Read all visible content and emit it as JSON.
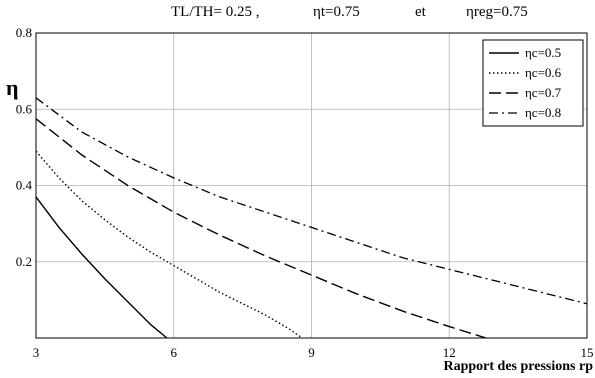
{
  "chart_data": {
    "type": "line",
    "title": {
      "part1": "TL/TH= 0.25 ,",
      "part2": "ηt=0.75",
      "part3": "et",
      "part4": "ηreg=0.75"
    },
    "xlabel": "Rapport des pressions rp",
    "ylabel": "η",
    "xlim": [
      3,
      15
    ],
    "ylim": [
      0,
      0.8
    ],
    "xticks": [
      3,
      6,
      9,
      12,
      15
    ],
    "yticks": [
      0.2,
      0.4,
      0.6,
      0.8
    ],
    "xtick_labels": [
      "3",
      "6",
      "9",
      "12",
      "15"
    ],
    "ytick_labels": [
      "0.2",
      "0.4",
      "0.6",
      "0.8"
    ],
    "grid": true,
    "legend_position": "top-right",
    "series": [
      {
        "name": "ηc=0.5",
        "style": "solid",
        "x": [
          3,
          3.5,
          4,
          4.5,
          5,
          5.5,
          5.85
        ],
        "y": [
          0.37,
          0.29,
          0.22,
          0.155,
          0.095,
          0.035,
          0
        ]
      },
      {
        "name": "ηc=0.6",
        "style": "dotted",
        "x": [
          3,
          3.5,
          4,
          4.5,
          5,
          5.5,
          6,
          6.5,
          7,
          7.5,
          8,
          8.5,
          8.8
        ],
        "y": [
          0.49,
          0.42,
          0.36,
          0.31,
          0.265,
          0.225,
          0.19,
          0.155,
          0.12,
          0.09,
          0.06,
          0.025,
          0
        ]
      },
      {
        "name": "ηc=0.7",
        "style": "dashed",
        "x": [
          3,
          4,
          5,
          6,
          7,
          8,
          9,
          10,
          11,
          12,
          12.8
        ],
        "y": [
          0.575,
          0.48,
          0.4,
          0.33,
          0.27,
          0.215,
          0.165,
          0.115,
          0.07,
          0.03,
          0
        ]
      },
      {
        "name": "ηc=0.8",
        "style": "dashdot",
        "x": [
          3,
          4,
          5,
          6,
          7,
          8,
          9,
          10,
          11,
          12,
          13,
          14,
          15
        ],
        "y": [
          0.63,
          0.54,
          0.475,
          0.42,
          0.37,
          0.33,
          0.29,
          0.25,
          0.21,
          0.18,
          0.15,
          0.12,
          0.09
        ]
      }
    ]
  }
}
